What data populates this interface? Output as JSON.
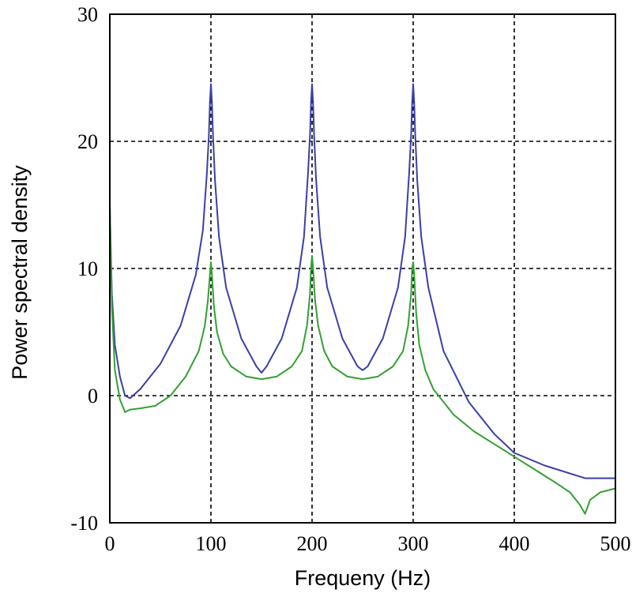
{
  "chart_data": {
    "type": "line",
    "title": "",
    "xlabel": "Frequeny (Hz)",
    "ylabel": "Power spectral density",
    "xlim": [
      0,
      500
    ],
    "ylim": [
      -10,
      30
    ],
    "xticks": [
      0,
      100,
      200,
      300,
      400,
      500
    ],
    "yticks": [
      -10,
      0,
      10,
      20,
      30
    ],
    "xtick_labels": [
      "0",
      "100",
      "200",
      "300",
      "400",
      "500"
    ],
    "ytick_labels": [
      "-10",
      "0",
      "10",
      "20",
      "30"
    ],
    "grid": true,
    "series": [
      {
        "name": "blue",
        "color": "#3a3fa6",
        "x": [
          0,
          2,
          5,
          10,
          15,
          20,
          30,
          50,
          70,
          85,
          92,
          96,
          98,
          99,
          100,
          101,
          102,
          104,
          108,
          115,
          130,
          145,
          150,
          155,
          170,
          185,
          192,
          196,
          198,
          199,
          200,
          201,
          202,
          204,
          208,
          215,
          230,
          245,
          250,
          255,
          270,
          285,
          292,
          296,
          298,
          299,
          300,
          301,
          302,
          304,
          308,
          315,
          330,
          355,
          380,
          400,
          430,
          470,
          500
        ],
        "y": [
          15,
          8,
          4,
          1.5,
          0,
          -0.2,
          0.5,
          2.5,
          5.5,
          9.5,
          13,
          17.5,
          20.5,
          23,
          24.5,
          23,
          20.5,
          17,
          12.5,
          8.5,
          4.5,
          2.3,
          1.8,
          2.3,
          4.5,
          8.5,
          12.5,
          17.5,
          20.5,
          23,
          24.5,
          23,
          20.5,
          17,
          12.5,
          8.5,
          4.5,
          2.3,
          2,
          2.3,
          4.5,
          8.5,
          12.5,
          17.5,
          20.5,
          23,
          24.5,
          23,
          20.5,
          17,
          12.5,
          8.5,
          3.5,
          -0.5,
          -3,
          -4.5,
          -5.5,
          -6.5,
          -6.5
        ]
      },
      {
        "name": "green",
        "color": "#33a033",
        "x": [
          0,
          2,
          5,
          10,
          15,
          20,
          30,
          45,
          60,
          75,
          88,
          94,
          97,
          99,
          100,
          101,
          103,
          106,
          112,
          120,
          135,
          150,
          165,
          180,
          190,
          195,
          198,
          199,
          200,
          201,
          203,
          206,
          212,
          220,
          235,
          250,
          265,
          280,
          290,
          295,
          298,
          299,
          300,
          301,
          303,
          306,
          312,
          320,
          340,
          360,
          380,
          400,
          420,
          440,
          455,
          465,
          470,
          475,
          485,
          500
        ],
        "y": [
          15,
          7,
          2,
          -0.3,
          -1.3,
          -1.1,
          -1,
          -0.8,
          0,
          1.5,
          3.5,
          5.5,
          7.5,
          9.5,
          10.5,
          9.5,
          7,
          5,
          3.3,
          2.3,
          1.5,
          1.3,
          1.5,
          2.3,
          3.5,
          5.5,
          8,
          10,
          11,
          10,
          7.5,
          5.5,
          3.5,
          2.3,
          1.5,
          1.3,
          1.5,
          2.3,
          3.5,
          5.5,
          8,
          10,
          10.5,
          9.5,
          6.5,
          4,
          2,
          0.5,
          -1.5,
          -2.8,
          -3.8,
          -4.8,
          -5.8,
          -6.8,
          -7.6,
          -8.6,
          -9.3,
          -8.2,
          -7.6,
          -7.3
        ]
      }
    ]
  }
}
